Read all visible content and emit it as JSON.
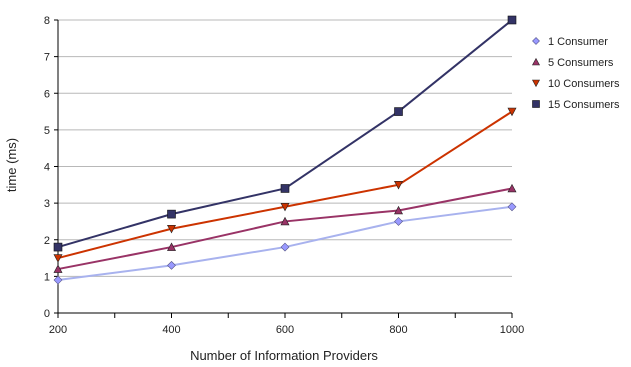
{
  "chart_data": {
    "type": "line",
    "title": "",
    "xlabel": "Number of Information Providers",
    "ylabel": "time (ms)",
    "x": [
      200,
      400,
      600,
      800,
      1000
    ],
    "x_ticks": [
      "200",
      "400",
      "600",
      "800",
      "1000"
    ],
    "y_ticks": [
      "0",
      "1",
      "2",
      "3",
      "4",
      "5",
      "6",
      "7",
      "8"
    ],
    "xlim": [
      200,
      1000
    ],
    "ylim": [
      0,
      8
    ],
    "grid": "horizontal",
    "legend_position": "right",
    "series": [
      {
        "name": "1 Consumer",
        "values": [
          0.9,
          1.3,
          1.8,
          2.5,
          2.9
        ],
        "color": "#9999ff",
        "line_color": "#a8b2ee",
        "marker": "diamond"
      },
      {
        "name": "5 Consumers",
        "values": [
          1.2,
          1.8,
          2.5,
          2.8,
          3.4
        ],
        "color": "#993366",
        "line_color": "#993366",
        "marker": "triangle-up"
      },
      {
        "name": "10 Consumers",
        "values": [
          1.5,
          2.3,
          2.9,
          3.5,
          5.5
        ],
        "color": "#cc3300",
        "line_color": "#cc3300",
        "marker": "triangle-down"
      },
      {
        "name": "15 Consumers",
        "values": [
          1.8,
          2.7,
          3.4,
          5.5,
          8.0
        ],
        "color": "#333366",
        "line_color": "#333366",
        "marker": "square"
      }
    ]
  }
}
